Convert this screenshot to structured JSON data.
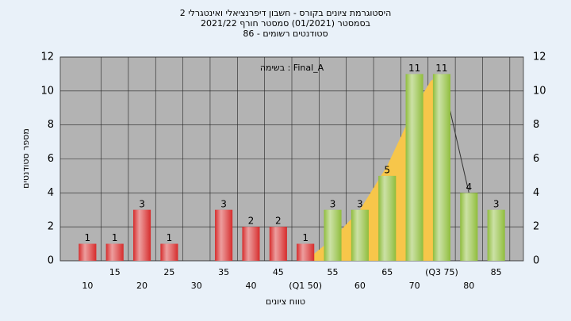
{
  "chart_data": {
    "type": "bar",
    "title_lines": [
      "היסטוגרמת ציונים בקורס - חשבון דיפרנציאלי ואינטגרלי 2",
      "בסמסטר  (01/2021)  סמסטר חורף 2021/22",
      "סטודנטים רשומים - 86"
    ],
    "annotation": "בשימה : Final_A",
    "xlabel": "טווח ציונים",
    "ylabel": "מספר סטודנטים",
    "x": [
      10,
      15,
      20,
      25,
      30,
      35,
      40,
      45,
      50,
      55,
      60,
      65,
      70,
      75,
      80,
      85
    ],
    "values": [
      1,
      1,
      3,
      1,
      0,
      3,
      2,
      2,
      1,
      3,
      3,
      5,
      11,
      11,
      4,
      3
    ],
    "colors": [
      "#d62b2b",
      "#d62b2b",
      "#d62b2b",
      "#d62b2b",
      "#d62b2b",
      "#d62b2b",
      "#d62b2b",
      "#d62b2b",
      "#d62b2b",
      "#8fbd3c",
      "#8fbd3c",
      "#8fbd3c",
      "#8fbd3c",
      "#8fbd3c",
      "#8fbd3c",
      "#8fbd3c"
    ],
    "curve": {
      "color": "#f7c64a",
      "x": [
        50,
        55,
        60,
        65,
        70,
        73,
        75,
        80
      ],
      "values": [
        0,
        1.3,
        3,
        5.6,
        9,
        10.6,
        11,
        4
      ]
    },
    "xlim": [
      5,
      90
    ],
    "xticks": [
      10,
      15,
      20,
      25,
      30,
      35,
      40,
      45,
      {
        "value": 50,
        "label": "(Q1 50)"
      },
      55,
      60,
      65,
      70,
      {
        "value": 75,
        "label": "(Q3 75)"
      },
      80,
      85
    ],
    "ylim": [
      0,
      12
    ],
    "yticks": [
      0,
      2,
      4,
      6,
      8,
      10,
      12
    ],
    "grid": true
  }
}
